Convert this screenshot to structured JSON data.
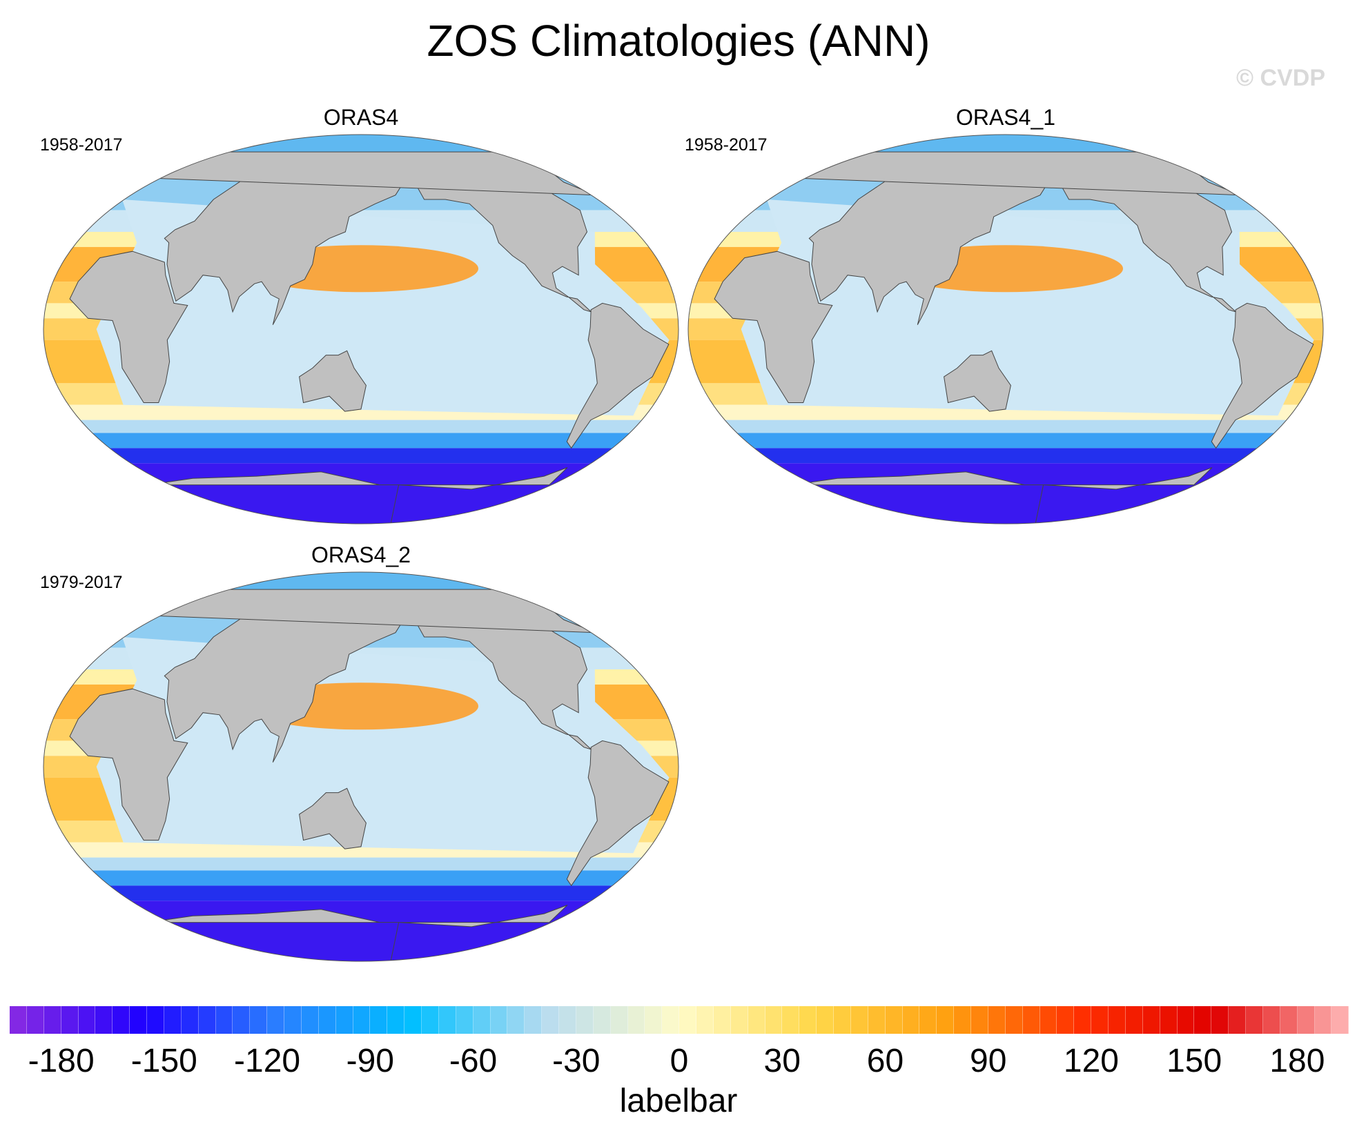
{
  "title": "ZOS Climatologies (ANN)",
  "credit": "© CVDP",
  "panels": [
    {
      "name": "ORAS4",
      "years": "1958-2017"
    },
    {
      "name": "ORAS4_1",
      "years": "1958-2017"
    },
    {
      "name": "ORAS4_2",
      "years": "1979-2017"
    }
  ],
  "colorbar": {
    "label": "labelbar",
    "min": -200,
    "max": 200,
    "step": 5,
    "ticks": [
      "-180",
      "-150",
      "-120",
      "-90",
      "-60",
      "-30",
      "0",
      "30",
      "60",
      "90",
      "120",
      "150",
      "180"
    ],
    "colors": [
      "#8a2be2",
      "#1e00ff",
      "#2a7fff",
      "#00bfff",
      "#b8dcf0",
      "#fffbc8",
      "#ffd84a",
      "#ffa010",
      "#ff3000",
      "#e00000",
      "#ffb8b8"
    ]
  }
}
